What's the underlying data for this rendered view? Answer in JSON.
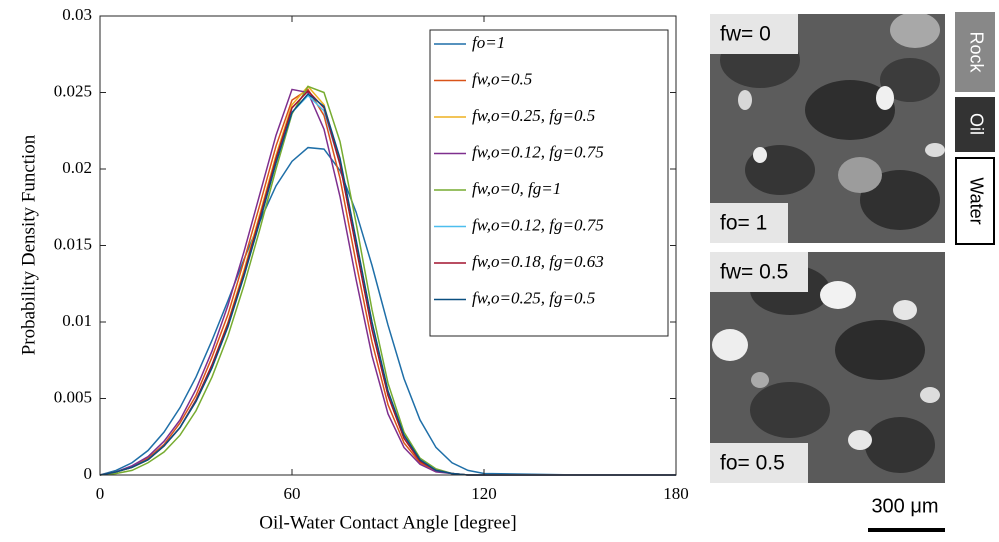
{
  "chart_data": {
    "type": "line",
    "xlabel": "Oil-Water Contact Angle [degree]",
    "ylabel": "Probability Density Function",
    "x": [
      0,
      5,
      10,
      15,
      20,
      25,
      30,
      35,
      40,
      45,
      50,
      55,
      60,
      65,
      70,
      75,
      80,
      85,
      90,
      95,
      100,
      105,
      110,
      115,
      120,
      150,
      180
    ],
    "xlim": [
      0,
      180
    ],
    "xticks": [
      0,
      60,
      120,
      180
    ],
    "ylim": [
      0,
      0.03
    ],
    "yticks": [
      0,
      0.005,
      0.01,
      0.015,
      0.02,
      0.025,
      0.03
    ],
    "legend": "upper right",
    "series": [
      {
        "name": "fo=1",
        "color": "#1f6fa8",
        "values": [
          0,
          0.0003,
          0.0008,
          0.0016,
          0.0028,
          0.0044,
          0.0064,
          0.0088,
          0.0114,
          0.0141,
          0.0166,
          0.0189,
          0.0205,
          0.0214,
          0.0213,
          0.0199,
          0.0172,
          0.0137,
          0.0098,
          0.0063,
          0.0036,
          0.0018,
          0.0008,
          0.0003,
          0.0001,
          0,
          0
        ]
      },
      {
        "name": "fw,o=0.5",
        "color": "#d95319",
        "values": [
          0,
          0.0002,
          0.0005,
          0.0011,
          0.002,
          0.0034,
          0.0052,
          0.0077,
          0.0105,
          0.014,
          0.0177,
          0.0215,
          0.0245,
          0.0252,
          0.0235,
          0.0194,
          0.0139,
          0.0087,
          0.0046,
          0.0021,
          0.0008,
          0.0003,
          0.0001,
          0,
          0,
          0,
          0
        ]
      },
      {
        "name": "fw,o=0.25, fg=0.5",
        "color": "#edb120",
        "values": [
          0,
          0.0002,
          0.0005,
          0.001,
          0.0019,
          0.0031,
          0.0049,
          0.0072,
          0.01,
          0.0134,
          0.0171,
          0.0209,
          0.0242,
          0.0254,
          0.0242,
          0.0204,
          0.015,
          0.0096,
          0.0052,
          0.0024,
          0.0009,
          0.0003,
          0.0001,
          0,
          0,
          0,
          0
        ]
      },
      {
        "name": "fw,o=0.12, fg=0.75",
        "color": "#7e2f8e",
        "values": [
          0,
          0.0002,
          0.0006,
          0.0012,
          0.0022,
          0.0036,
          0.0056,
          0.0081,
          0.0111,
          0.0146,
          0.0184,
          0.0222,
          0.0252,
          0.025,
          0.0226,
          0.0182,
          0.0128,
          0.0078,
          0.004,
          0.0018,
          0.0007,
          0.0002,
          0.0001,
          0,
          0,
          0,
          0
        ]
      },
      {
        "name": "fw,o=0, fg=1",
        "color": "#77ac30",
        "values": [
          0,
          0.0001,
          0.0003,
          0.0008,
          0.0015,
          0.0026,
          0.0042,
          0.0064,
          0.0091,
          0.0124,
          0.0161,
          0.02,
          0.0236,
          0.0254,
          0.025,
          0.0218,
          0.0165,
          0.0108,
          0.006,
          0.0028,
          0.0011,
          0.0004,
          0.0001,
          0,
          0,
          0,
          0
        ]
      },
      {
        "name": "fw,o=0.12, fg=0.75",
        "color": "#4dbeee",
        "values": [
          0,
          0.0002,
          0.0005,
          0.001,
          0.0019,
          0.0031,
          0.0049,
          0.0071,
          0.0098,
          0.0131,
          0.0167,
          0.0204,
          0.0237,
          0.0248,
          0.0238,
          0.0203,
          0.015,
          0.0097,
          0.0053,
          0.0025,
          0.001,
          0.0003,
          0.0001,
          0,
          0,
          0,
          0
        ]
      },
      {
        "name": "fw,o=0.18, fg=0.63",
        "color": "#a2142f",
        "values": [
          0,
          0.0002,
          0.0005,
          0.001,
          0.0019,
          0.0031,
          0.0049,
          0.0072,
          0.0099,
          0.0132,
          0.0169,
          0.0207,
          0.024,
          0.0251,
          0.024,
          0.0203,
          0.0149,
          0.0095,
          0.0052,
          0.0024,
          0.0009,
          0.0003,
          0.0001,
          0,
          0,
          0,
          0
        ]
      },
      {
        "name": "fw,o=0.25, fg=0.5",
        "color": "#0a4f80",
        "values": [
          0,
          0.0002,
          0.0005,
          0.001,
          0.0019,
          0.0031,
          0.0048,
          0.007,
          0.0097,
          0.013,
          0.0166,
          0.0204,
          0.0237,
          0.0249,
          0.0241,
          0.0207,
          0.0154,
          0.01,
          0.0055,
          0.0026,
          0.001,
          0.0003,
          0.0001,
          0,
          0,
          0,
          0
        ]
      }
    ]
  },
  "panels": {
    "top": {
      "water": "fw= 0",
      "oil": "fo= 1"
    },
    "bottom": {
      "water": "fw= 0.5",
      "oil": "fo= 0.5"
    },
    "phases": [
      "Rock",
      "Oil",
      "Water"
    ],
    "scale": "300 μm"
  }
}
